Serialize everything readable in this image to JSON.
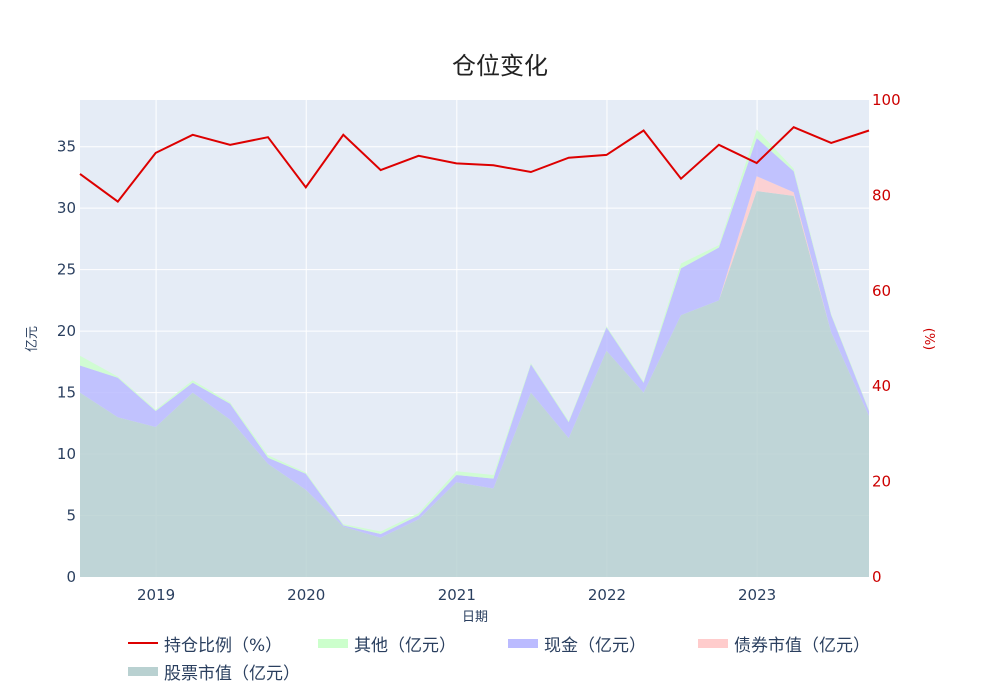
{
  "chart_data": {
    "type": "area",
    "title": "仓位变化",
    "xlabel": "日期",
    "ylabel": "亿元",
    "y2label": "(%)",
    "x": [
      "2018-06-30",
      "2018-09-30",
      "2018-12-31",
      "2019-03-31",
      "2019-06-30",
      "2019-09-30",
      "2019-12-31",
      "2020-03-31",
      "2020-06-30",
      "2020-09-30",
      "2020-12-31",
      "2021-03-31",
      "2021-06-30",
      "2021-09-30",
      "2021-12-31",
      "2022-03-31",
      "2022-06-30",
      "2022-09-30",
      "2022-12-31",
      "2023-03-31",
      "2023-06-30",
      "2023-09-30"
    ],
    "xticks": [
      "2019",
      "2020",
      "2021",
      "2022",
      "2023"
    ],
    "ylim": [
      0,
      38.8
    ],
    "yticks": [
      "0",
      "5",
      "10",
      "15",
      "20",
      "25",
      "30",
      "35"
    ],
    "y2lim": [
      0,
      100
    ],
    "y2ticks": [
      "0",
      "20",
      "40",
      "60",
      "80",
      "100"
    ],
    "grid": true,
    "legend_position": "bottom",
    "series": [
      {
        "name": "持仓比例（%）",
        "kind": "line",
        "axis": "y2",
        "color": "#dd0000",
        "values": [
          84.5,
          78.7,
          88.9,
          92.7,
          90.6,
          92.2,
          81.7,
          92.7,
          85.3,
          88.3,
          86.7,
          86.3,
          84.9,
          87.9,
          88.5,
          93.6,
          83.5,
          90.6,
          86.8,
          94.3,
          91.0,
          93.6
        ]
      },
      {
        "name": "其他（亿元）",
        "kind": "area",
        "axis": "y",
        "color": "#ccffcc",
        "values": [
          0.8,
          0.1,
          0.1,
          0.2,
          0.1,
          0.2,
          0.1,
          0.1,
          0.2,
          0.2,
          0.3,
          0.3,
          0.1,
          0.1,
          0.1,
          0.1,
          0.4,
          0.2,
          0.7,
          0.2,
          0.1,
          0.1
        ]
      },
      {
        "name": "现金（亿元）",
        "kind": "area",
        "axis": "y",
        "color": "#bbbbff",
        "values": [
          2.2,
          3.2,
          1.3,
          0.8,
          1.3,
          0.5,
          1.3,
          0.1,
          0.3,
          0.3,
          0.6,
          0.8,
          2.3,
          1.3,
          1.9,
          0.8,
          3.8,
          4.3,
          3.1,
          1.7,
          1.4,
          0.4
        ]
      },
      {
        "name": "债券市值（亿元）",
        "kind": "area",
        "axis": "y",
        "color": "#ffcccc",
        "values": [
          0,
          0,
          0,
          0,
          0,
          0,
          0,
          0,
          0,
          0,
          0,
          0,
          0,
          0,
          0,
          0,
          0,
          0,
          1.2,
          0.3,
          0,
          0
        ]
      },
      {
        "name": "股票市值（亿元）",
        "kind": "area",
        "axis": "y",
        "color": "#b9d1d1",
        "values": [
          15.0,
          13.0,
          12.2,
          15.0,
          12.8,
          9.2,
          7.1,
          4.1,
          3.2,
          4.7,
          7.7,
          7.2,
          15.0,
          11.3,
          18.4,
          15.0,
          21.3,
          22.5,
          31.4,
          31.0,
          19.9,
          13.1
        ]
      }
    ]
  }
}
